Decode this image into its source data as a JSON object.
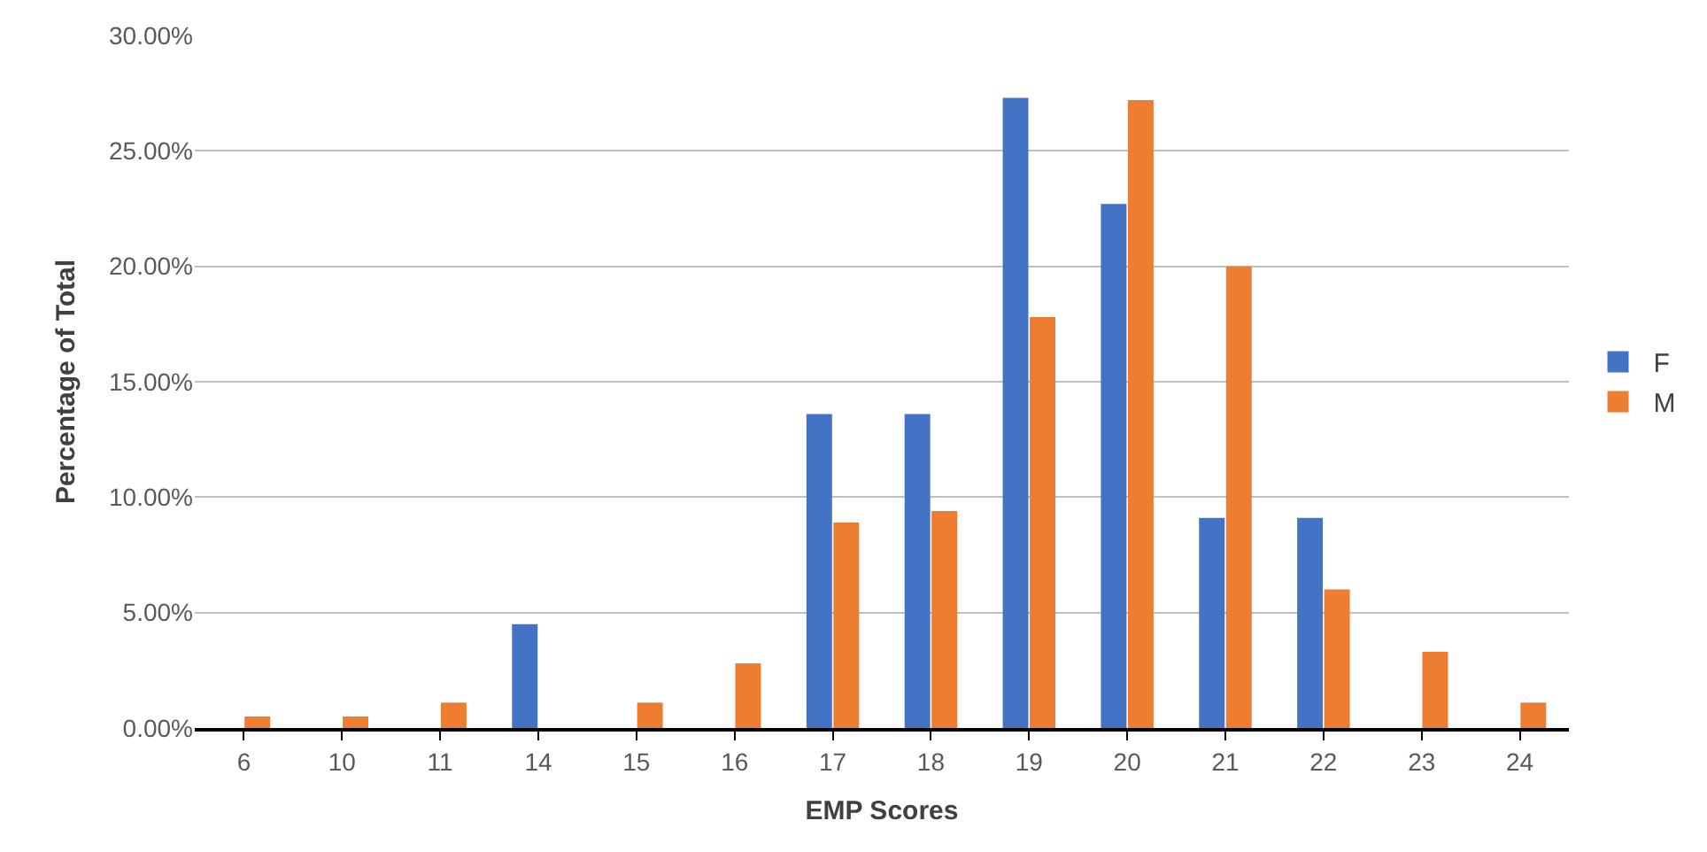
{
  "chart_data": {
    "type": "bar",
    "xlabel": "EMP Scores",
    "ylabel": "Percentage of Total",
    "categories": [
      "6",
      "10",
      "11",
      "14",
      "15",
      "16",
      "17",
      "18",
      "19",
      "20",
      "21",
      "22",
      "23",
      "24"
    ],
    "series": [
      {
        "name": "F",
        "color": "#4472c4",
        "values": [
          0,
          0,
          0,
          4.5,
          0,
          0,
          13.6,
          13.6,
          27.3,
          22.7,
          9.1,
          9.1,
          0,
          0
        ]
      },
      {
        "name": "M",
        "color": "#ed7d31",
        "values": [
          0.5,
          0.5,
          1.1,
          0,
          1.1,
          2.8,
          8.9,
          9.4,
          17.8,
          27.2,
          20.0,
          6.0,
          3.3,
          1.1
        ]
      }
    ],
    "ylim": [
      0,
      30
    ],
    "yticks": [
      {
        "value": 0,
        "label": "0.00%"
      },
      {
        "value": 5,
        "label": "5.00%"
      },
      {
        "value": 10,
        "label": "10.00%"
      },
      {
        "value": 15,
        "label": "15.00%"
      },
      {
        "value": 20,
        "label": "20.00%"
      },
      {
        "value": 25,
        "label": "25.00%"
      },
      {
        "value": 30,
        "label": "30.00%"
      }
    ],
    "grid": "y",
    "legend": "right"
  }
}
